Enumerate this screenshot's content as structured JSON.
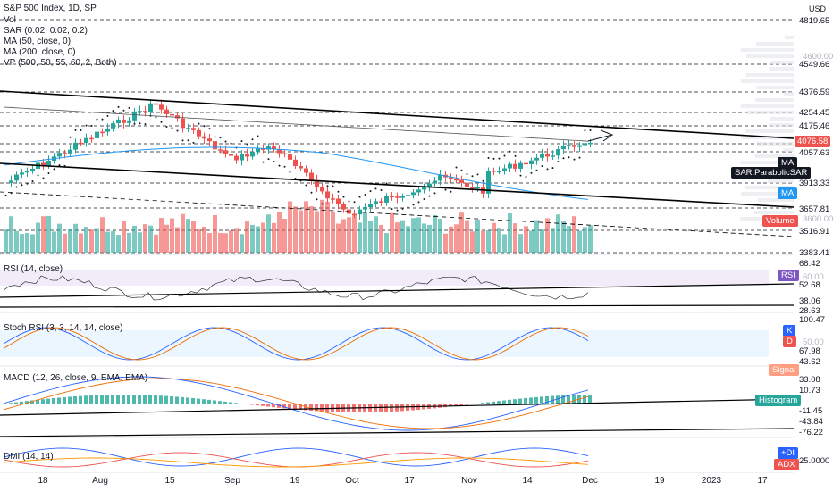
{
  "header": {
    "title": "S&P 500 Index, 1D, SP",
    "currency": "USD",
    "indicators": [
      "Vol",
      "SAR (0.02, 0.02, 0.2)",
      "MA (50, close, 0)",
      "MA (200, close, 0)",
      "VP (500, 50, 55, 60, 2, Both)"
    ]
  },
  "panes": {
    "rsi": "RSI (14, close)",
    "stoch": "Stoch RSI (3, 3, 14, 14, close)",
    "macd": "MACD (12, 26, close, 9, EMA, EMA)",
    "dmi": "DMI (14, 14)"
  },
  "price_axis": {
    "levels": [
      "4819.65",
      "4549.66",
      "4376.59",
      "4254.45",
      "4175.46",
      "4076.58",
      "4057.63",
      "3913.33",
      "3657.81",
      "3516.91",
      "3383.41"
    ],
    "grey": [
      "4600.00",
      "3600.00"
    ]
  },
  "tags": {
    "ma": "MA",
    "sar": "SAR:ParabolicSAR",
    "ma2": "MA",
    "volume": "Volume",
    "rsi": "RSI",
    "k": "K",
    "d": "D",
    "signal": "Signal",
    "histogram": "Histogram",
    "plus_di": "+DI",
    "adx": "ADX"
  },
  "rsi_axis": [
    "68.42",
    "60.00",
    "52.68",
    "38.06",
    "28.63"
  ],
  "stoch_axis": [
    "100.47",
    "50.00",
    "67.98",
    "43.62"
  ],
  "macd_axis": [
    "33.08",
    "10.73",
    "-11.45",
    "-43.84",
    "-76.22"
  ],
  "dmi_axis": [
    "25.0000"
  ],
  "time_axis": [
    "18",
    "Aug",
    "15",
    "Sep",
    "19",
    "Oct",
    "17",
    "Nov",
    "14",
    "Dec",
    "19",
    "2023",
    "17"
  ],
  "colors": {
    "up": "#26a69a",
    "down": "#ef5350",
    "ma50": "#2962ff",
    "rsi": "#7e57c2"
  }
}
